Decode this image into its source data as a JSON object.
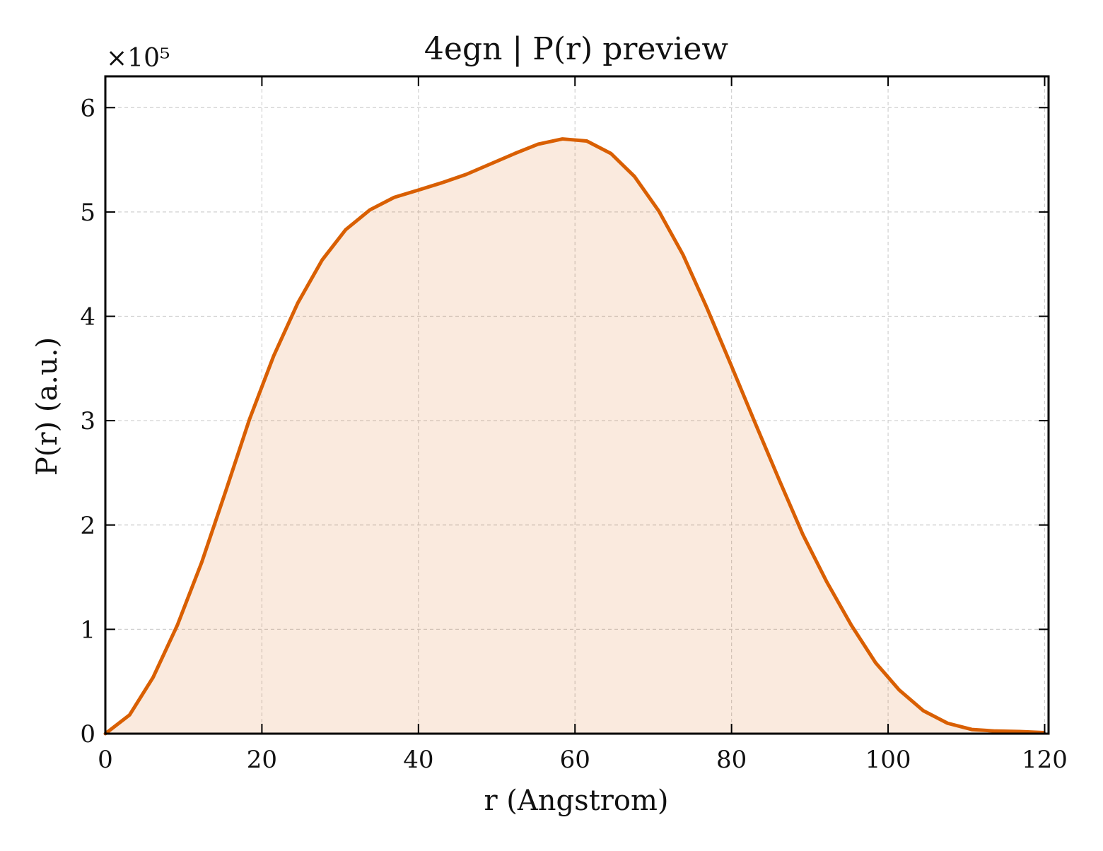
{
  "chart_data": {
    "type": "area",
    "title": "4egn | P(r) preview",
    "xlabel": "r (Angstrom)",
    "ylabel": "P(r) (a.u.)",
    "y_multiplier_label": "×10⁵",
    "xlim": [
      0,
      120.5
    ],
    "ylim": [
      0,
      6.3
    ],
    "y_scale_factor": 100000,
    "xticks": [
      0,
      20,
      40,
      60,
      80,
      100,
      120
    ],
    "xtick_labels": [
      "0",
      "20",
      "40",
      "60",
      "80",
      "100",
      "120"
    ],
    "yticks": [
      0,
      1,
      2,
      3,
      4,
      5,
      6
    ],
    "ytick_labels": [
      "0",
      "1",
      "2",
      "3",
      "4",
      "5",
      "6"
    ],
    "grid": true,
    "series": [
      {
        "color": "#d95f02",
        "fill_color": "#d95f02",
        "fill_opacity": 0.13,
        "x": [
          0,
          3.1,
          6.1,
          9.2,
          12.3,
          15.4,
          18.4,
          21.5,
          24.6,
          27.7,
          30.7,
          33.8,
          36.9,
          40.0,
          43.0,
          46.1,
          49.2,
          52.3,
          55.3,
          58.4,
          61.5,
          64.6,
          67.6,
          70.7,
          73.8,
          76.8,
          79.9,
          83.0,
          86.1,
          89.1,
          92.2,
          95.3,
          98.4,
          101.4,
          104.5,
          107.6,
          110.7,
          113.7,
          116.8,
          119.9
        ],
        "y": [
          0.0,
          0.18,
          0.54,
          1.04,
          1.64,
          2.33,
          3.01,
          3.62,
          4.13,
          4.54,
          4.83,
          5.02,
          5.14,
          5.21,
          5.28,
          5.36,
          5.46,
          5.56,
          5.65,
          5.7,
          5.68,
          5.56,
          5.34,
          5.01,
          4.59,
          4.09,
          3.54,
          2.98,
          2.43,
          1.91,
          1.45,
          1.04,
          0.68,
          0.42,
          0.22,
          0.1,
          0.04,
          0.025,
          0.02,
          0.01
        ]
      }
    ]
  }
}
